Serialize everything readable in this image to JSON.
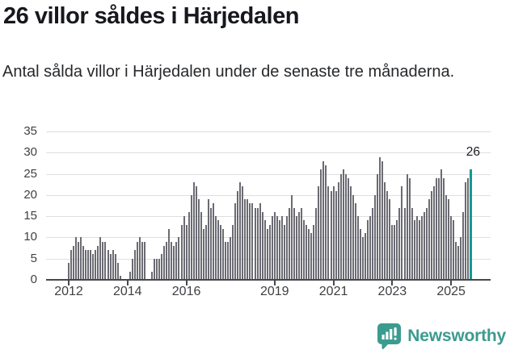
{
  "header": {
    "title": "26 villor såldes i Härjedalen",
    "subtitle": "Antal sålda villor i Härjedalen under de senaste tre månaderna."
  },
  "chart_data": {
    "type": "bar",
    "title": "26 villor såldes i Härjedalen",
    "xlabel": "",
    "ylabel": "",
    "x_start": "2012-01",
    "x_end": "2025-09",
    "ylim": [
      0,
      35
    ],
    "grid": true,
    "y_ticks": [
      0,
      5,
      10,
      15,
      20,
      25,
      30,
      35
    ],
    "x_tick_years": [
      2012,
      2014,
      2016,
      2019,
      2021,
      2023,
      2025
    ],
    "x_tick_labels": [
      "2012",
      "2014",
      "2016",
      "2019",
      "2021",
      "2023",
      "2025"
    ],
    "bar_color": "#6b6b73",
    "highlight_color": "#0d9c92",
    "annotation_label": "26",
    "annotation_value": 26,
    "values": [
      4,
      7,
      8,
      10,
      9,
      10,
      8,
      7,
      7,
      7,
      6,
      7,
      8,
      10,
      9,
      9,
      7,
      6,
      7,
      6,
      4,
      1,
      0,
      0,
      0,
      2,
      5,
      7,
      9,
      10,
      9,
      9,
      0,
      0,
      2,
      5,
      5,
      5,
      6,
      8,
      9,
      12,
      9,
      8,
      9,
      10,
      13,
      15,
      13,
      16,
      20,
      23,
      22,
      19,
      16,
      12,
      13,
      19,
      17,
      18,
      15,
      14,
      13,
      12,
      9,
      9,
      10,
      13,
      18,
      21,
      23,
      22,
      19,
      19,
      18,
      18,
      17,
      17,
      18,
      16,
      14,
      12,
      13,
      15,
      16,
      15,
      14,
      15,
      13,
      15,
      17,
      20,
      17,
      15,
      16,
      17,
      14,
      13,
      12,
      11,
      13,
      17,
      22,
      26,
      28,
      27,
      22,
      21,
      22,
      21,
      23,
      25,
      26,
      25,
      24,
      22,
      20,
      18,
      15,
      12,
      10,
      11,
      14,
      15,
      17,
      20,
      25,
      29,
      28,
      23,
      21,
      19,
      13,
      13,
      14,
      17,
      22,
      17,
      25,
      24,
      17,
      14,
      15,
      14,
      15,
      16,
      17,
      19,
      21,
      22,
      24,
      24,
      26,
      24,
      20,
      19,
      15,
      14,
      9,
      8,
      10,
      16,
      23,
      24,
      26
    ]
  },
  "footer": {
    "brand": "Newsworthy",
    "logo_color": "#3b9b8e"
  }
}
